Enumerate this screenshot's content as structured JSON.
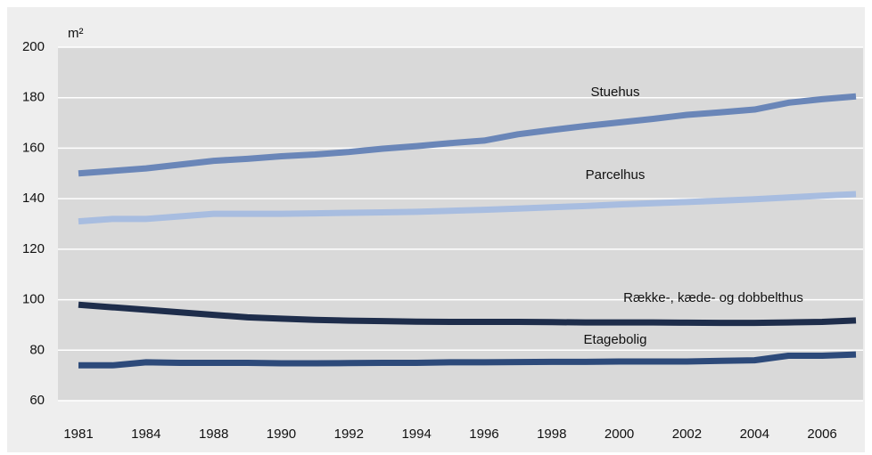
{
  "chart_data": {
    "type": "line",
    "unit_label": "m²",
    "categories": [
      "1981",
      null,
      "1984",
      null,
      "1988",
      null,
      "1990",
      null,
      "1992",
      null,
      "1994",
      null,
      "1996",
      null,
      "1998",
      null,
      "2000",
      null,
      "2002",
      null,
      "2004",
      null,
      "2006",
      null
    ],
    "ylim": [
      60,
      200
    ],
    "yticks": [
      60,
      80,
      100,
      120,
      140,
      160,
      180,
      200
    ],
    "grid": true,
    "series": [
      {
        "name": "Stuehus",
        "color": "#6a86b8",
        "values": [
          150,
          151,
          152,
          153.5,
          155,
          155.8,
          156.8,
          157.5,
          158.5,
          159.8,
          160.8,
          162,
          163,
          165.5,
          167.2,
          168.8,
          170.2,
          171.6,
          173.2,
          174.2,
          175.3,
          178,
          179.4,
          180.5
        ]
      },
      {
        "name": "Parcelhus",
        "color": "#a8bde0",
        "values": [
          131,
          132,
          132,
          133,
          134,
          134,
          134,
          134.2,
          134.4,
          134.6,
          134.8,
          135.2,
          135.6,
          136.1,
          136.6,
          137.1,
          137.7,
          138.2,
          138.7,
          139.2,
          139.8,
          140.5,
          141.2,
          141.8
        ]
      },
      {
        "name": "Række-, kæde- og dobbelthus",
        "color": "#1e2d4b",
        "values": [
          98,
          97,
          96,
          95,
          94,
          93,
          92.5,
          92,
          91.7,
          91.5,
          91.3,
          91.2,
          91.2,
          91.2,
          91.1,
          91,
          91,
          91,
          90.9,
          90.8,
          90.8,
          91,
          91.2,
          91.8
        ]
      },
      {
        "name": "Etagebolig",
        "color": "#2d4a7a",
        "values": [
          74,
          74,
          75.2,
          75,
          75,
          75,
          74.8,
          74.8,
          74.9,
          75,
          75,
          75.2,
          75.2,
          75.3,
          75.4,
          75.4,
          75.5,
          75.5,
          75.5,
          75.8,
          76,
          77.8,
          77.8,
          78.3
        ]
      }
    ]
  }
}
